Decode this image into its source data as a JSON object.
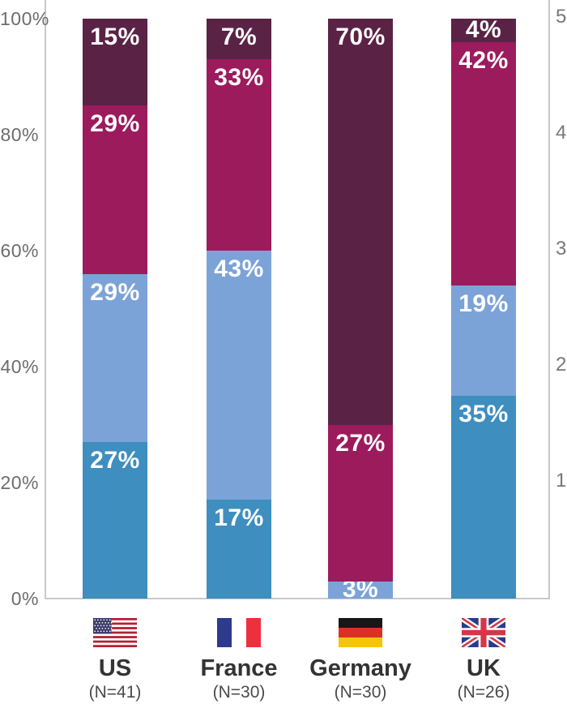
{
  "chart_data": {
    "type": "bar",
    "subtype": "stacked-percent-column",
    "title": "",
    "categories": [
      "US",
      "France",
      "Germany",
      "UK"
    ],
    "category_sublabels": [
      "(N=41)",
      "(N=30)",
      "(N=30)",
      "(N=26)"
    ],
    "category_flags": [
      "us-flag",
      "france-flag",
      "germany-flag",
      "uk-flag"
    ],
    "series": [
      {
        "name": "bottom-dark-blue",
        "color": "#3e8ebf",
        "values": [
          27,
          17,
          0,
          35
        ],
        "labels": [
          "27%",
          "17%",
          "",
          "35%"
        ]
      },
      {
        "name": "light-blue",
        "color": "#7ca3d7",
        "values": [
          29,
          43,
          3,
          19
        ],
        "labels": [
          "29%",
          "43%",
          "3%",
          "19%"
        ]
      },
      {
        "name": "magenta",
        "color": "#9c1b5c",
        "values": [
          29,
          33,
          27,
          42
        ],
        "labels": [
          "29%",
          "33%",
          "27%",
          "42%"
        ]
      },
      {
        "name": "top-dark-maroon",
        "color": "#5a2345",
        "values": [
          15,
          7,
          70,
          4
        ],
        "labels": [
          "15%",
          "7%",
          "70%",
          "4%"
        ]
      }
    ],
    "left_axis": {
      "ticks": [
        {
          "label": "100%",
          "value": 100
        },
        {
          "label": "80%",
          "value": 80
        },
        {
          "label": "60%",
          "value": 60
        },
        {
          "label": "40%",
          "value": 40
        },
        {
          "label": "20%",
          "value": 20
        },
        {
          "label": "0%",
          "value": 0
        }
      ]
    },
    "right_axis": {
      "ticks": [
        {
          "label": "5",
          "value": 100
        },
        {
          "label": "4",
          "value": 80
        },
        {
          "label": "3",
          "value": 60
        },
        {
          "label": "2",
          "value": 40
        },
        {
          "label": "1",
          "value": 20
        }
      ]
    },
    "ylim": [
      0,
      100
    ],
    "grid": false,
    "legend_position": "bottom-flags",
    "data_label_color": "#ffffff"
  },
  "colors": {
    "axis_line": "#c9c9c9",
    "left_tick_text": "#6d6d6d",
    "right_tick_text": "#787878",
    "country_text": "#333333",
    "sample_size_text": "#4a4a4a"
  },
  "flag_colors": {
    "us": {
      "canton": "#3c3b6e",
      "stripe_red": "#b22234",
      "white": "#ffffff"
    },
    "france": {
      "blue": "#2e3a8c",
      "white": "#ffffff",
      "red": "#ee2f3e"
    },
    "germany": {
      "black": "#171717",
      "red": "#dc3026",
      "gold": "#f6c50a"
    },
    "uk": {
      "blue": "#2b3a8c",
      "white": "#ffffff",
      "red": "#d63647"
    }
  }
}
